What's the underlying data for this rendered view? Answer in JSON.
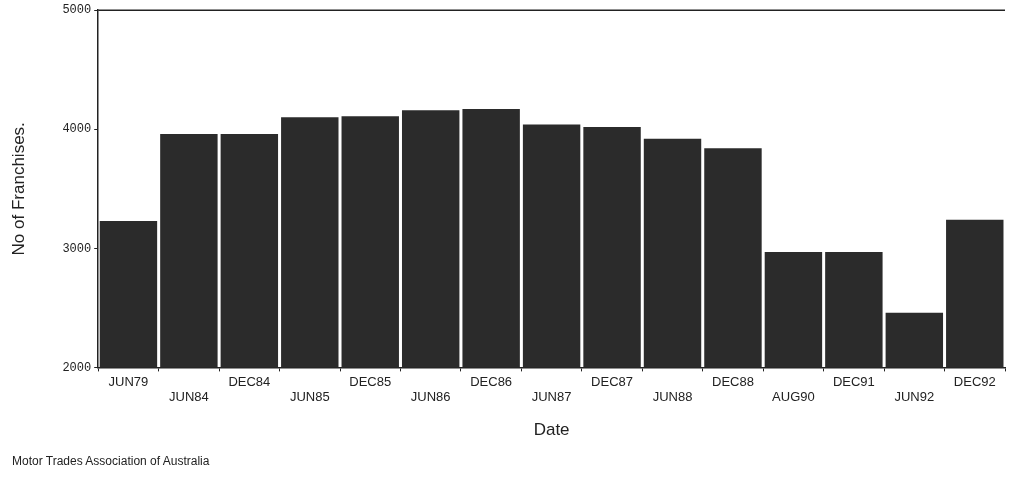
{
  "chart_data": {
    "type": "bar",
    "xlabel": "Date",
    "ylabel": "No of Franchises.",
    "categories": [
      "JUN79",
      "JUN84",
      "DEC84",
      "JUN85",
      "DEC85",
      "JUN86",
      "DEC86",
      "JUN87",
      "DEC87",
      "JUN88",
      "DEC88",
      "AUG90",
      "DEC91",
      "JUN92",
      "DEC92"
    ],
    "values": [
      3230,
      3960,
      3960,
      4100,
      4110,
      4160,
      4170,
      4040,
      4020,
      3920,
      3840,
      2970,
      2970,
      2460,
      3240
    ],
    "color": "#2b2b2b",
    "ylim": [
      2000,
      5000
    ],
    "yticks": [
      2000,
      3000,
      4000,
      5000
    ],
    "grid": false,
    "legend": false,
    "annotations": [
      "Motor Trades Association of Australia"
    ]
  }
}
